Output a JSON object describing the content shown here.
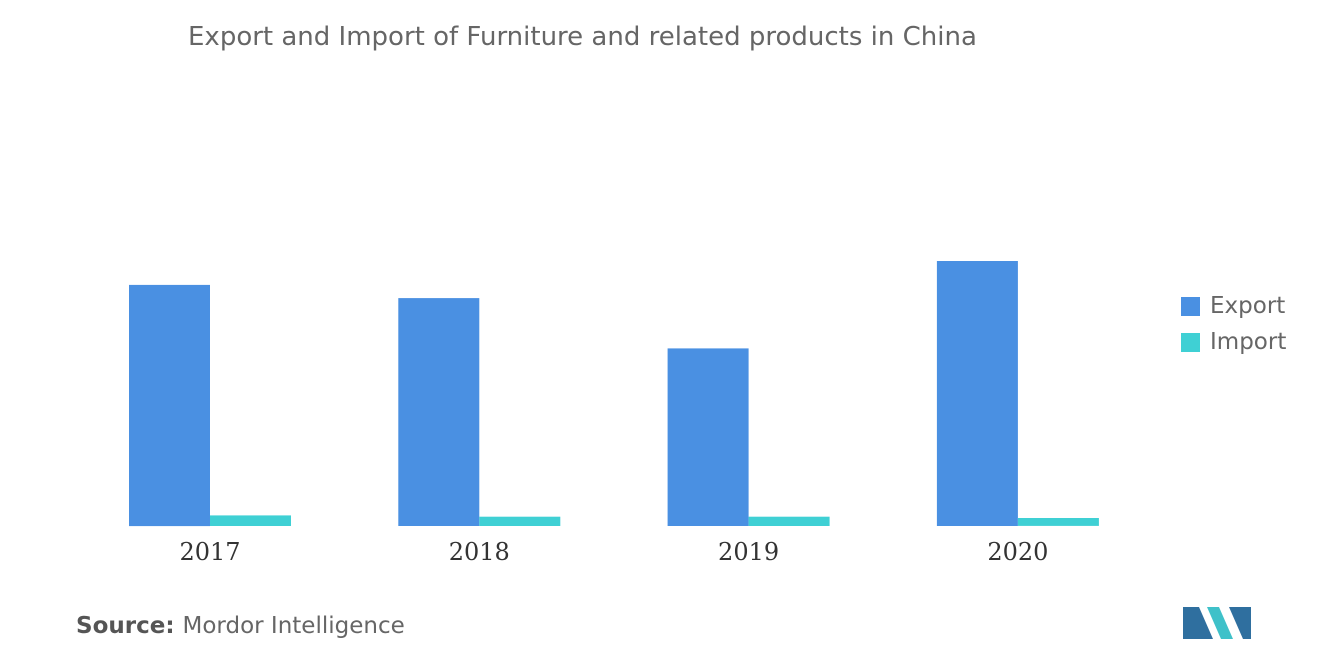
{
  "title": "Export and Import of Furniture and related products in China",
  "source": {
    "label": "Source:",
    "value": "Mordor Intelligence"
  },
  "colors": {
    "export": "#4a90e2",
    "import": "#3fd0d4",
    "logo_dark": "#2f6f9f",
    "logo_light": "#3fc1c9"
  },
  "logo_icon": "mordor-intelligence-logo",
  "chart_data": {
    "type": "bar",
    "title": "Export and Import of Furniture and related products in China",
    "categories": [
      "2017",
      "2018",
      "2019",
      "2020"
    ],
    "series": [
      {
        "name": "Export",
        "values": [
          91,
          86,
          67,
          100
        ],
        "color": "#4a90e2"
      },
      {
        "name": "Import",
        "values": [
          4,
          3.5,
          3.5,
          3
        ],
        "color": "#3fd0d4"
      }
    ],
    "xlabel": "",
    "ylabel": "",
    "ylim": [
      0,
      100
    ],
    "grid": false,
    "legend": "right"
  }
}
